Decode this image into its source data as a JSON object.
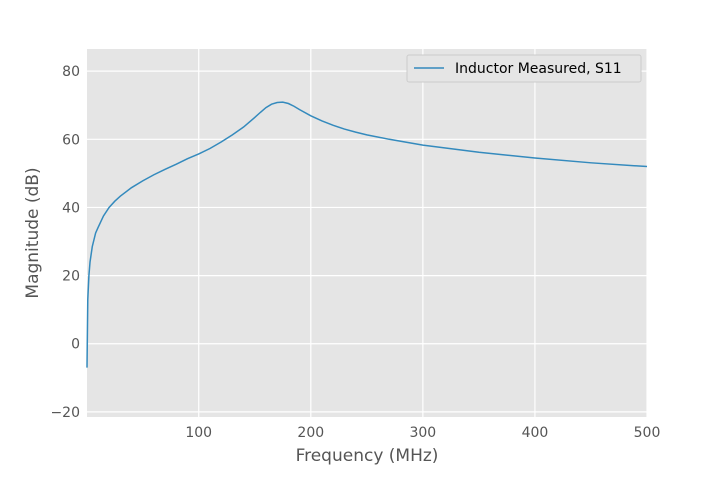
{
  "chart_data": {
    "type": "line",
    "title": "",
    "xlabel": "Frequency (MHz)",
    "ylabel": "Magnitude (dB)",
    "xlim": [
      0.3,
      500
    ],
    "ylim": [
      -21.5,
      86.5
    ],
    "xticks": [
      100,
      200,
      300,
      400,
      500
    ],
    "yticks": [
      -20,
      0,
      20,
      40,
      60,
      80
    ],
    "xtick_labels": [
      "100",
      "200",
      "300",
      "400",
      "500"
    ],
    "ytick_labels": [
      "−20",
      "0",
      "20",
      "40",
      "60",
      "80"
    ],
    "grid": true,
    "legend_position": "top-right",
    "series": [
      {
        "name": "Inductor Measured, S11",
        "color": "#348abd",
        "x": [
          0.3,
          1,
          2,
          3,
          5,
          8,
          10,
          15,
          20,
          25,
          30,
          40,
          50,
          60,
          70,
          80,
          90,
          100,
          110,
          120,
          130,
          140,
          150,
          155,
          160,
          165,
          170,
          175,
          180,
          185,
          190,
          200,
          210,
          220,
          230,
          240,
          250,
          270,
          300,
          350,
          400,
          450,
          500
        ],
        "y": [
          -7,
          13,
          20,
          24,
          28.5,
          32.5,
          34,
          37.5,
          40,
          41.8,
          43.3,
          45.8,
          47.8,
          49.6,
          51.2,
          52.7,
          54.3,
          55.7,
          57.3,
          59.2,
          61.3,
          63.6,
          66.4,
          67.9,
          69.3,
          70.3,
          70.8,
          70.9,
          70.5,
          69.7,
          68.7,
          66.9,
          65.4,
          64.1,
          63.0,
          62.1,
          61.3,
          60.0,
          58.3,
          56.2,
          54.5,
          53.1,
          52.0
        ]
      }
    ]
  }
}
